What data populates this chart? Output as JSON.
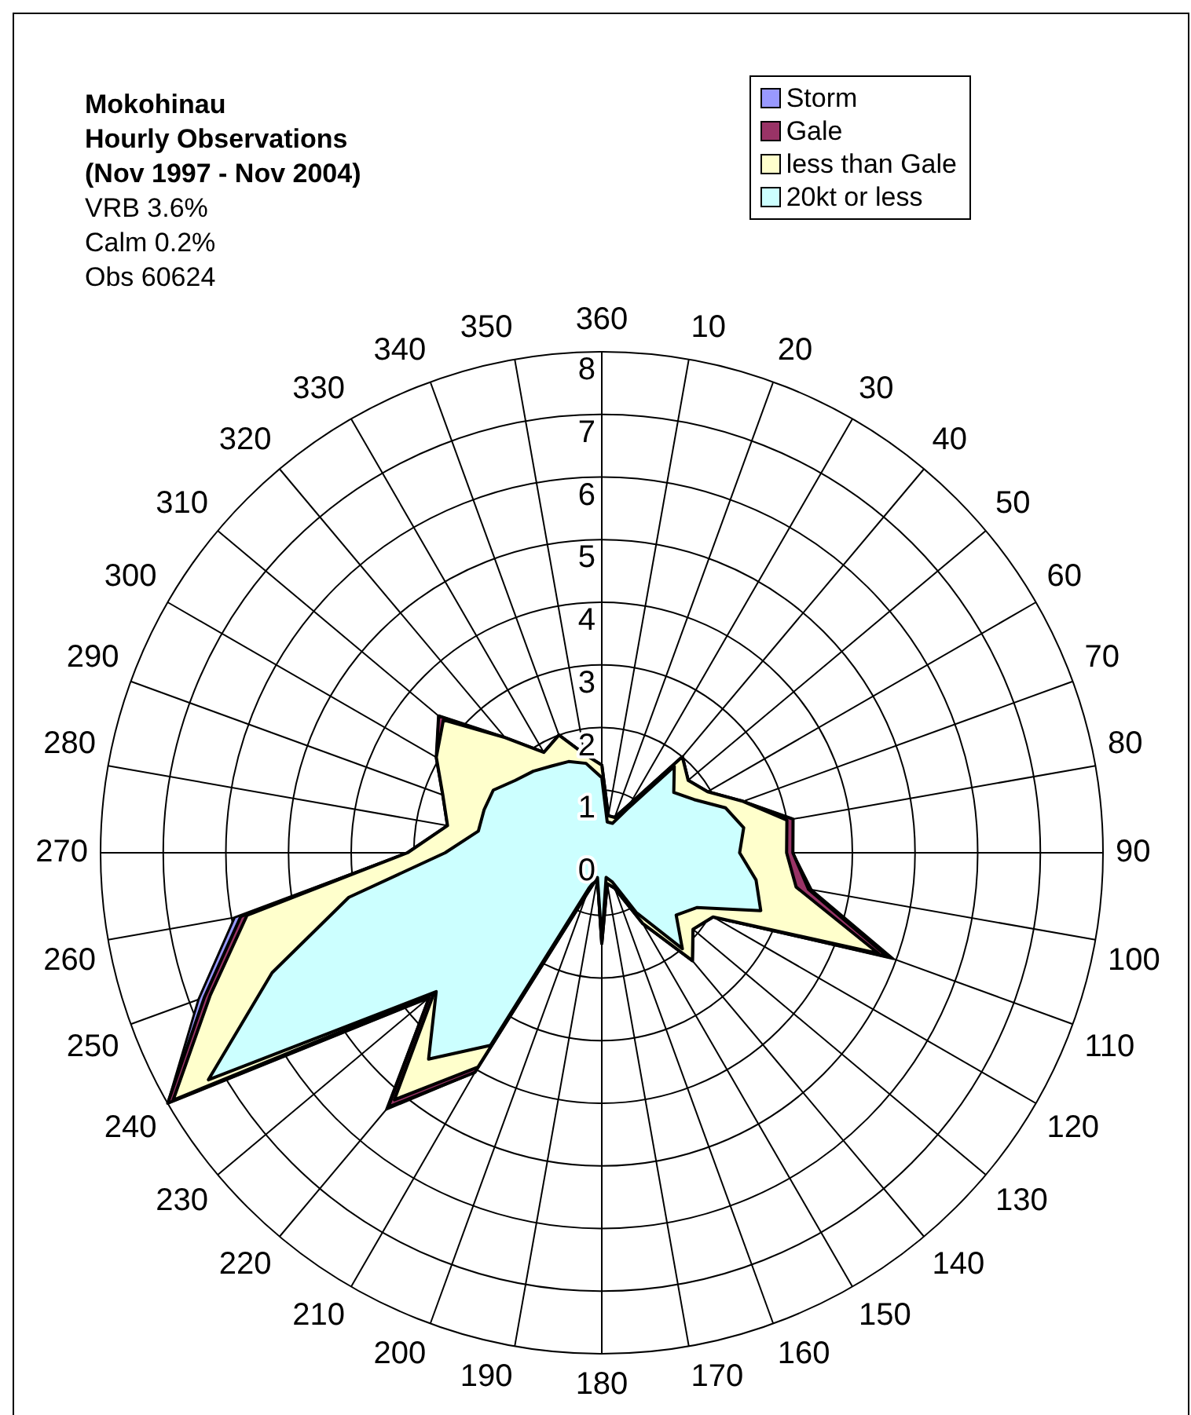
{
  "chart_data": {
    "type": "radar",
    "title": "Mokohinau\nHourly Observations\n(Nov 1997 - Nov 2004)",
    "annotations": [
      "VRB 3.6%",
      "Calm 0.2%",
      "Obs 60624"
    ],
    "categories": [
      "360",
      "10",
      "20",
      "30",
      "40",
      "50",
      "60",
      "70",
      "80",
      "90",
      "100",
      "110",
      "120",
      "130",
      "140",
      "150",
      "160",
      "170",
      "180",
      "190",
      "200",
      "210",
      "220",
      "230",
      "240",
      "250",
      "260",
      "270",
      "280",
      "290",
      "300",
      "310",
      "320",
      "330",
      "340",
      "350"
    ],
    "series": [
      {
        "name": "Storm",
        "color": "#9999ff",
        "values": [
          1.4,
          0.6,
          0.6,
          0.9,
          2.0,
          1.8,
          1.95,
          2.4,
          3.1,
          3.05,
          3.4,
          4.95,
          2.05,
          1.9,
          2.25,
          1.3,
          0.6,
          0.5,
          1.45,
          0.4,
          0.7,
          4.05,
          5.35,
          3.6,
          8.0,
          6.85,
          5.95,
          3.1,
          2.5,
          2.7,
          3.05,
          3.4,
          2.4,
          1.85,
          2.0,
          1.6
        ]
      },
      {
        "name": "Gale",
        "color": "#993366",
        "values": [
          1.4,
          0.6,
          0.6,
          0.9,
          2.0,
          1.8,
          1.95,
          2.4,
          3.1,
          3.05,
          3.35,
          4.85,
          2.05,
          1.9,
          2.25,
          1.3,
          0.6,
          0.5,
          1.45,
          0.4,
          0.7,
          4.05,
          5.3,
          3.6,
          8.0,
          6.75,
          5.85,
          3.1,
          2.5,
          2.7,
          3.05,
          3.4,
          2.4,
          1.85,
          2.0,
          1.6
        ]
      },
      {
        "name": "less than Gale",
        "color": "#ffffcc",
        "values": [
          1.4,
          0.6,
          0.6,
          0.9,
          2.0,
          1.8,
          1.95,
          2.4,
          3.0,
          2.95,
          3.15,
          4.7,
          2.05,
          1.9,
          2.25,
          1.3,
          0.6,
          0.5,
          1.45,
          0.4,
          0.7,
          3.95,
          5.15,
          3.5,
          7.9,
          6.65,
          5.75,
          3.1,
          2.5,
          2.7,
          3.05,
          3.3,
          2.4,
          1.85,
          2.0,
          1.6
        ]
      },
      {
        "name": "20kt or less",
        "color": "#ccffff",
        "values": [
          1.2,
          0.5,
          0.5,
          0.8,
          1.8,
          1.5,
          1.7,
          2.1,
          2.3,
          2.2,
          2.5,
          2.7,
          1.75,
          1.55,
          2.0,
          1.1,
          0.5,
          0.4,
          1.4,
          0.4,
          0.6,
          3.55,
          4.3,
          3.45,
          7.25,
          5.6,
          4.1,
          2.5,
          2.0,
          2.0,
          2.0,
          1.8,
          1.7,
          1.6,
          1.55,
          1.45
        ]
      }
    ],
    "ylim": [
      0,
      8
    ],
    "yticks": [
      0,
      1,
      2,
      3,
      4,
      5,
      6,
      7,
      8
    ],
    "grid": true,
    "legend": "top right",
    "marker": "none"
  }
}
